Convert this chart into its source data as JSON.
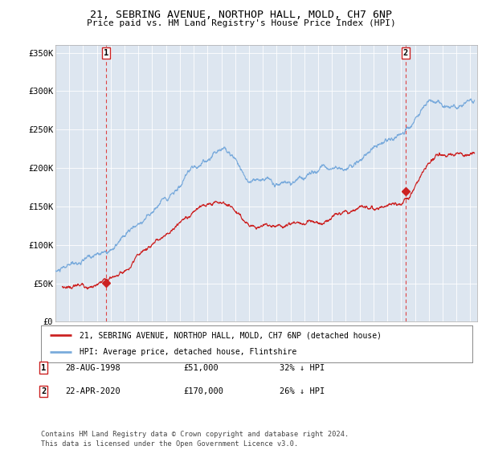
{
  "title": "21, SEBRING AVENUE, NORTHOP HALL, MOLD, CH7 6NP",
  "subtitle": "Price paid vs. HM Land Registry's House Price Index (HPI)",
  "bg_color": "#dde6f0",
  "red_line_label": "21, SEBRING AVENUE, NORTHOP HALL, MOLD, CH7 6NP (detached house)",
  "blue_line_label": "HPI: Average price, detached house, Flintshire",
  "transactions": [
    {
      "id": 1,
      "date": "28-AUG-1998",
      "price": 51000,
      "hpi_pct": "32% ↓ HPI",
      "year": 1998.66
    },
    {
      "id": 2,
      "date": "22-APR-2020",
      "price": 170000,
      "hpi_pct": "26% ↓ HPI",
      "year": 2020.31
    }
  ],
  "footer": "Contains HM Land Registry data © Crown copyright and database right 2024.\nThis data is licensed under the Open Government Licence v3.0.",
  "ylim": [
    0,
    360000
  ],
  "xlim_start": 1995.0,
  "xlim_end": 2025.5,
  "yticks": [
    0,
    50000,
    100000,
    150000,
    200000,
    250000,
    300000,
    350000
  ],
  "ytick_labels": [
    "£0",
    "£50K",
    "£100K",
    "£150K",
    "£200K",
    "£250K",
    "£300K",
    "£350K"
  ]
}
